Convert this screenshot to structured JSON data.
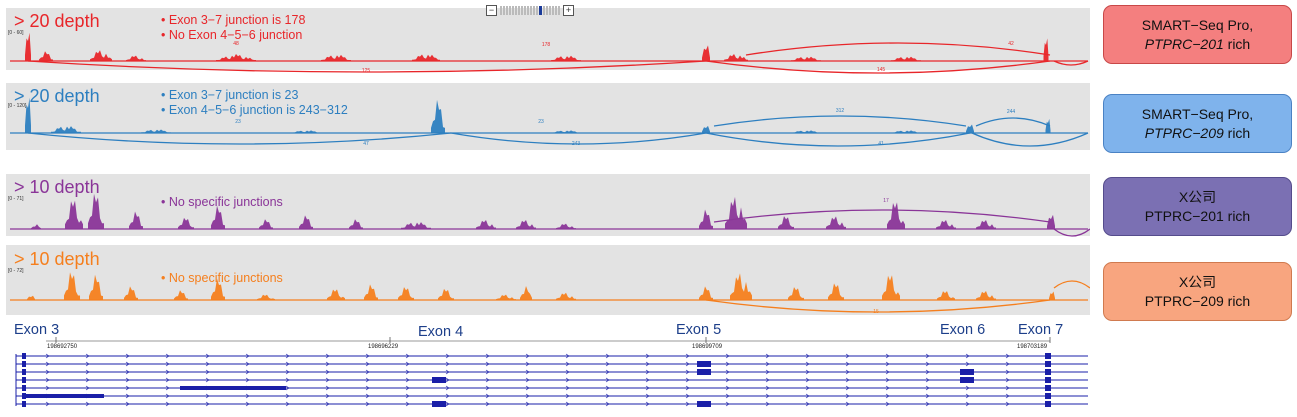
{
  "zoom": {
    "minus": "−",
    "plus": "+"
  },
  "tracks": [
    {
      "id": "t1",
      "depth": "> 20 depth",
      "color": "#e8262a",
      "scale": "[0 - 60]",
      "bullets": [
        "Exon 3−7 junction is 178",
        "No Exon 4−5−6 junction"
      ],
      "junction_labels": [
        "48",
        "178",
        "125",
        "42",
        "145"
      ]
    },
    {
      "id": "t2",
      "depth": "> 20 depth",
      "color": "#2d7fc0",
      "scale": "[0 - 120]",
      "bullets": [
        "Exon 3−7 junction is 23",
        "Exon 4−5−6 junction is 243−312"
      ],
      "junction_labels": [
        "23",
        "23",
        "312",
        "244",
        "47",
        "243",
        "41"
      ]
    },
    {
      "id": "t3",
      "depth": "> 10 depth",
      "color": "#8a3598",
      "scale": "[0 - 71]",
      "bullets": [
        "No specific junctions"
      ],
      "junction_labels": [
        "17"
      ]
    },
    {
      "id": "t4",
      "depth": "> 10 depth",
      "color": "#f57f1e",
      "scale": "[0 - 72]",
      "bullets": [
        "No specific junctions"
      ],
      "junction_labels": [
        "15"
      ]
    }
  ],
  "exons": {
    "labels": [
      "Exon 3",
      "Exon 4",
      "Exon 5",
      "Exon 6",
      "Exon 7"
    ],
    "coords": [
      "198692750",
      "198696229",
      "198699709",
      "198703189"
    ]
  },
  "legend": [
    {
      "line1": "SMART−Seq Pro,",
      "line2_italic": "PTPRC−201",
      "line2_rest": " rich",
      "bg": "#f47f7f",
      "border": "#c84848"
    },
    {
      "line1": "SMART−Seq Pro,",
      "line2_italic": "PTPRC−209",
      "line2_rest": " rich",
      "bg": "#7fb3ec",
      "border": "#4a82c4"
    },
    {
      "line1": "X公司",
      "line2_italic": "",
      "line2_rest": "PTPRC−201  rich",
      "bg": "#7b70b3",
      "border": "#554c8c"
    },
    {
      "line1": "X公司",
      "line2_italic": "",
      "line2_rest": "PTPRC−209  rich",
      "bg": "#f8a57f",
      "border": "#d07a4f"
    }
  ],
  "colors": {
    "track_bg": "#e3e3e3",
    "gene_model": "#1a1fa8"
  }
}
